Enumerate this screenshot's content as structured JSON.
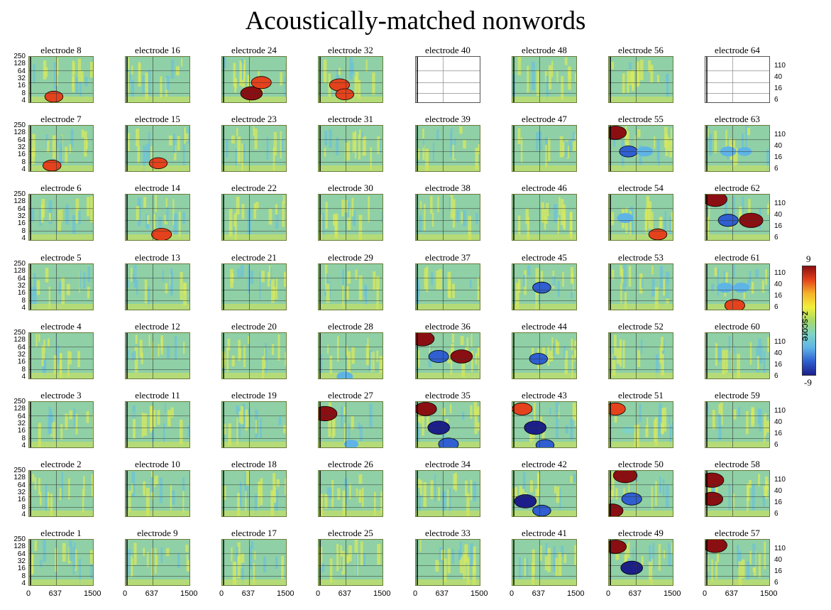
{
  "figure": {
    "title": "Acoustically-matched nonwords",
    "panel_label_prefix": "electrode",
    "y_ticks_left": [
      "250",
      "128",
      "64",
      "32",
      "16",
      "8",
      "4"
    ],
    "y_ticks_right": [
      "110",
      "40",
      "16",
      "6"
    ],
    "x_ticks": [
      "0",
      "637",
      "1500"
    ],
    "colorbar": {
      "label": "z-score",
      "max": "9",
      "min": "-9",
      "colors": [
        "#1c1f8a",
        "#2f5fd0",
        "#5fb4e6",
        "#7ed3c5",
        "#a8d96a",
        "#f2ee3a",
        "#f5b32a",
        "#e4421c",
        "#8a0f12"
      ]
    },
    "empty_electrodes": [
      40,
      64
    ]
  },
  "chart_data": {
    "type": "heatmap",
    "title": "Acoustically-matched nonwords",
    "layout": "8x8 grid of time-frequency panels",
    "x_axis": {
      "range": [
        0,
        1500
      ],
      "ticks": [
        0,
        637,
        1500
      ]
    },
    "y_axis_left": {
      "scale": "log",
      "ticks": [
        250,
        128,
        64,
        32,
        16,
        8,
        4
      ]
    },
    "y_axis_right": {
      "ticks": [
        110,
        40,
        16,
        6
      ]
    },
    "colorbar": {
      "label": "z-score",
      "range": [
        -9,
        9
      ]
    },
    "grid": [
      [
        8,
        16,
        24,
        32,
        40,
        48,
        56,
        64
      ],
      [
        7,
        15,
        23,
        31,
        39,
        47,
        55,
        63
      ],
      [
        6,
        14,
        22,
        30,
        38,
        46,
        54,
        62
      ],
      [
        5,
        13,
        21,
        29,
        37,
        45,
        53,
        61
      ],
      [
        4,
        12,
        20,
        28,
        36,
        44,
        52,
        60
      ],
      [
        3,
        11,
        19,
        27,
        35,
        43,
        51,
        59
      ],
      [
        2,
        10,
        18,
        26,
        34,
        42,
        50,
        58
      ],
      [
        1,
        9,
        17,
        25,
        33,
        41,
        49,
        57
      ]
    ],
    "hotspots": {
      "8": [
        {
          "t": 0.38,
          "f": 0.85,
          "z": 6
        }
      ],
      "24": [
        {
          "t": 0.45,
          "f": 0.78,
          "z": 8
        },
        {
          "t": 0.6,
          "f": 0.55,
          "z": 7
        }
      ],
      "32": [
        {
          "t": 0.32,
          "f": 0.6,
          "z": 7
        },
        {
          "t": 0.4,
          "f": 0.8,
          "z": 6
        }
      ],
      "7": [
        {
          "t": 0.35,
          "f": 0.85,
          "z": 6
        }
      ],
      "15": [
        {
          "t": 0.5,
          "f": 0.8,
          "z": 6
        }
      ],
      "14": [
        {
          "t": 0.55,
          "f": 0.85,
          "z": 7
        }
      ],
      "55": [
        {
          "t": 0.1,
          "f": 0.15,
          "z": 8
        },
        {
          "t": 0.3,
          "f": 0.55,
          "z": -6
        },
        {
          "t": 0.55,
          "f": 0.55,
          "z": -5
        }
      ],
      "63": [
        {
          "t": 0.35,
          "f": 0.55,
          "z": -5
        },
        {
          "t": 0.6,
          "f": 0.55,
          "z": -4
        }
      ],
      "54": [
        {
          "t": 0.25,
          "f": 0.5,
          "z": -5
        },
        {
          "t": 0.75,
          "f": 0.85,
          "z": 6
        }
      ],
      "62": [
        {
          "t": 0.15,
          "f": 0.1,
          "z": 9
        },
        {
          "t": 0.35,
          "f": 0.55,
          "z": -7
        },
        {
          "t": 0.7,
          "f": 0.55,
          "z": 9
        }
      ],
      "45": [
        {
          "t": 0.45,
          "f": 0.5,
          "z": -6
        }
      ],
      "61": [
        {
          "t": 0.3,
          "f": 0.5,
          "z": -5
        },
        {
          "t": 0.55,
          "f": 0.5,
          "z": -5
        },
        {
          "t": 0.45,
          "f": 0.88,
          "z": 7
        }
      ],
      "36": [
        {
          "t": 0.1,
          "f": 0.12,
          "z": 9
        },
        {
          "t": 0.35,
          "f": 0.5,
          "z": -7
        },
        {
          "t": 0.7,
          "f": 0.5,
          "z": 8
        }
      ],
      "44": [
        {
          "t": 0.4,
          "f": 0.55,
          "z": -6
        }
      ],
      "28": [
        {
          "t": 0.4,
          "f": 0.93,
          "z": -5
        }
      ],
      "27": [
        {
          "t": 0.1,
          "f": 0.25,
          "z": 9
        },
        {
          "t": 0.5,
          "f": 0.9,
          "z": -4
        }
      ],
      "35": [
        {
          "t": 0.15,
          "f": 0.15,
          "z": 8
        },
        {
          "t": 0.35,
          "f": 0.55,
          "z": -8
        },
        {
          "t": 0.5,
          "f": 0.9,
          "z": -7
        }
      ],
      "43": [
        {
          "t": 0.15,
          "f": 0.15,
          "z": 7
        },
        {
          "t": 0.35,
          "f": 0.55,
          "z": -8
        },
        {
          "t": 0.5,
          "f": 0.92,
          "z": -6
        }
      ],
      "51": [
        {
          "t": 0.1,
          "f": 0.15,
          "z": 7
        },
        {
          "t": 0.3,
          "f": 0.6,
          "z": -3
        }
      ],
      "42": [
        {
          "t": 0.2,
          "f": 0.65,
          "z": -8
        },
        {
          "t": 0.45,
          "f": 0.85,
          "z": -6
        }
      ],
      "50": [
        {
          "t": 0.25,
          "f": 0.1,
          "z": 9
        },
        {
          "t": 0.35,
          "f": 0.6,
          "z": -7
        },
        {
          "t": 0.05,
          "f": 0.85,
          "z": 8
        }
      ],
      "58": [
        {
          "t": 0.1,
          "f": 0.2,
          "z": 9
        },
        {
          "t": 0.1,
          "f": 0.6,
          "z": 8
        }
      ],
      "49": [
        {
          "t": 0.1,
          "f": 0.15,
          "z": 8
        },
        {
          "t": 0.35,
          "f": 0.6,
          "z": -8
        }
      ],
      "57": [
        {
          "t": 0.15,
          "f": 0.12,
          "z": 9
        }
      ]
    }
  }
}
